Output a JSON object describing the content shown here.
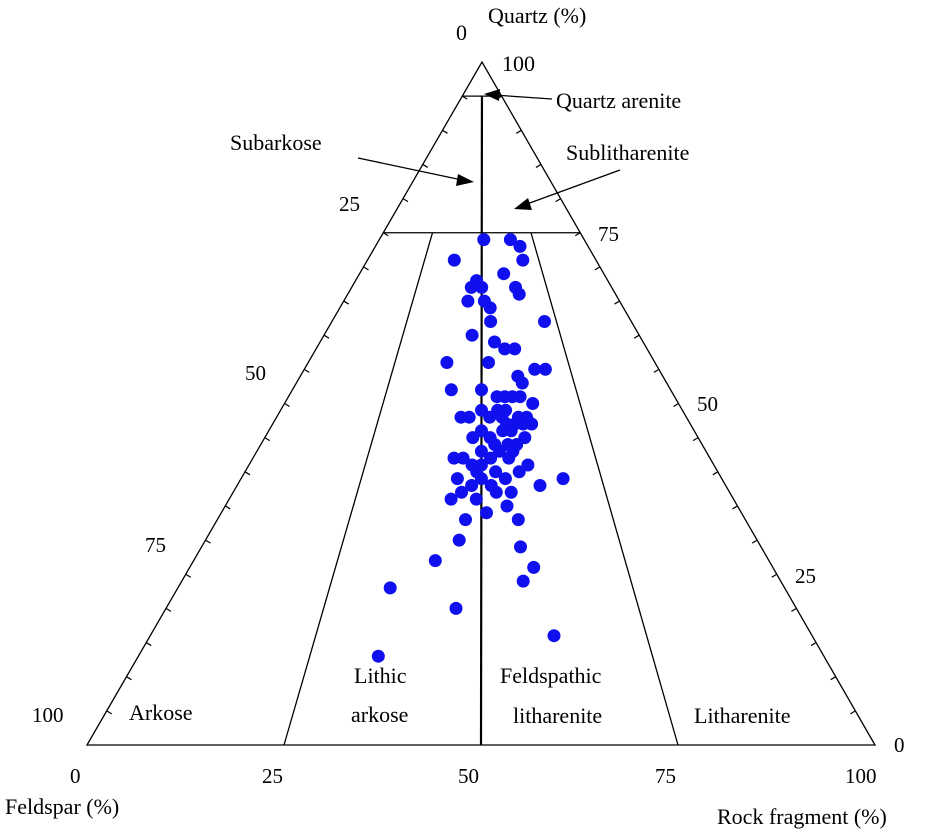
{
  "chart_data": {
    "type": "scatter",
    "subtype": "ternary-QFR",
    "title": "",
    "axes": {
      "top": {
        "label": "Quartz (%)",
        "ticks": [
          "0",
          "100"
        ]
      },
      "left": {
        "label": "Feldspar (%)",
        "ticks": [
          "25",
          "50",
          "75",
          "100"
        ]
      },
      "right": {
        "label": "Rock fragment (%)",
        "ticks": [
          "75",
          "50",
          "25",
          "0"
        ]
      },
      "bottom": {
        "ticks": [
          "0",
          "25",
          "50",
          "75",
          "100"
        ]
      }
    },
    "fields": [
      "Quartz arenite",
      "Subarkose",
      "Sublitharenite",
      "Arkose",
      "Lithic arkose",
      "Feldspathic litharenite",
      "Litharenite"
    ],
    "field_labels": {
      "quartz_arenite": "Quartz arenite",
      "subarkose": "Subarkose",
      "sublitharenite": "Sublitharenite",
      "arkose": "Arkose",
      "lithic_arkose_1": "Lithic",
      "lithic_arkose_2": "arkose",
      "feld_lith_1": "Feldspathic",
      "feld_lith_2": "litharenite",
      "litharenite": "Litharenite"
    },
    "boundaries": {
      "quartz_lines": [
        95,
        75
      ],
      "ratio_lines": [
        0.25,
        0.5,
        0.75
      ]
    },
    "marker_color": "#1010ee",
    "points": [
      {
        "q": 71,
        "r": 38
      },
      {
        "q": 74,
        "r": 51
      },
      {
        "q": 74,
        "r": 64
      },
      {
        "q": 73,
        "r": 68
      },
      {
        "q": 71,
        "r": 68
      },
      {
        "q": 69,
        "r": 59
      },
      {
        "q": 68,
        "r": 48
      },
      {
        "q": 67,
        "r": 46
      },
      {
        "q": 67,
        "r": 50
      },
      {
        "q": 67,
        "r": 63
      },
      {
        "q": 66,
        "r": 64
      },
      {
        "q": 65,
        "r": 45
      },
      {
        "q": 65,
        "r": 51
      },
      {
        "q": 64,
        "r": 53
      },
      {
        "q": 62,
        "r": 53
      },
      {
        "q": 62,
        "r": 71
      },
      {
        "q": 60,
        "r": 47
      },
      {
        "q": 59,
        "r": 54
      },
      {
        "q": 58,
        "r": 57
      },
      {
        "q": 58,
        "r": 60
      },
      {
        "q": 56,
        "r": 40
      },
      {
        "q": 56,
        "r": 52
      },
      {
        "q": 55,
        "r": 68
      },
      {
        "q": 55,
        "r": 65
      },
      {
        "q": 54,
        "r": 60
      },
      {
        "q": 53,
        "r": 61
      },
      {
        "q": 52,
        "r": 50
      },
      {
        "q": 52,
        "r": 42
      },
      {
        "q": 51,
        "r": 54
      },
      {
        "q": 51,
        "r": 56
      },
      {
        "q": 51,
        "r": 58
      },
      {
        "q": 51,
        "r": 60
      },
      {
        "q": 50,
        "r": 63
      },
      {
        "q": 49,
        "r": 50
      },
      {
        "q": 49,
        "r": 54
      },
      {
        "q": 49,
        "r": 56
      },
      {
        "q": 48,
        "r": 45
      },
      {
        "q": 48,
        "r": 47
      },
      {
        "q": 48,
        "r": 52
      },
      {
        "q": 48,
        "r": 55
      },
      {
        "q": 48,
        "r": 59
      },
      {
        "q": 48,
        "r": 61
      },
      {
        "q": 47,
        "r": 56
      },
      {
        "q": 47,
        "r": 58
      },
      {
        "q": 47,
        "r": 60
      },
      {
        "q": 47,
        "r": 62
      },
      {
        "q": 46,
        "r": 50
      },
      {
        "q": 46,
        "r": 55
      },
      {
        "q": 46,
        "r": 57
      },
      {
        "q": 45,
        "r": 48
      },
      {
        "q": 45,
        "r": 52
      },
      {
        "q": 45,
        "r": 60
      },
      {
        "q": 44,
        "r": 53
      },
      {
        "q": 44,
        "r": 56
      },
      {
        "q": 44,
        "r": 58
      },
      {
        "q": 43,
        "r": 50
      },
      {
        "q": 43,
        "r": 54
      },
      {
        "q": 43,
        "r": 57
      },
      {
        "q": 42,
        "r": 44
      },
      {
        "q": 42,
        "r": 46
      },
      {
        "q": 42,
        "r": 52
      },
      {
        "q": 42,
        "r": 56
      },
      {
        "q": 41,
        "r": 48
      },
      {
        "q": 41,
        "r": 50
      },
      {
        "q": 41,
        "r": 60
      },
      {
        "q": 40,
        "r": 49
      },
      {
        "q": 40,
        "r": 53
      },
      {
        "q": 40,
        "r": 58
      },
      {
        "q": 39,
        "r": 45
      },
      {
        "q": 39,
        "r": 50
      },
      {
        "q": 39,
        "r": 55
      },
      {
        "q": 39,
        "r": 67
      },
      {
        "q": 38,
        "r": 48
      },
      {
        "q": 38,
        "r": 52
      },
      {
        "q": 38,
        "r": 62
      },
      {
        "q": 37,
        "r": 46
      },
      {
        "q": 37,
        "r": 53
      },
      {
        "q": 37,
        "r": 56
      },
      {
        "q": 36,
        "r": 44
      },
      {
        "q": 36,
        "r": 49
      },
      {
        "q": 35,
        "r": 55
      },
      {
        "q": 34,
        "r": 51
      },
      {
        "q": 33,
        "r": 47
      },
      {
        "q": 33,
        "r": 57
      },
      {
        "q": 30,
        "r": 46
      },
      {
        "q": 29,
        "r": 57
      },
      {
        "q": 27,
        "r": 42
      },
      {
        "q": 26,
        "r": 59
      },
      {
        "q": 24,
        "r": 57
      },
      {
        "q": 23,
        "r": 35
      },
      {
        "q": 20,
        "r": 46
      },
      {
        "q": 16,
        "r": 61
      },
      {
        "q": 13,
        "r": 35
      }
    ]
  }
}
